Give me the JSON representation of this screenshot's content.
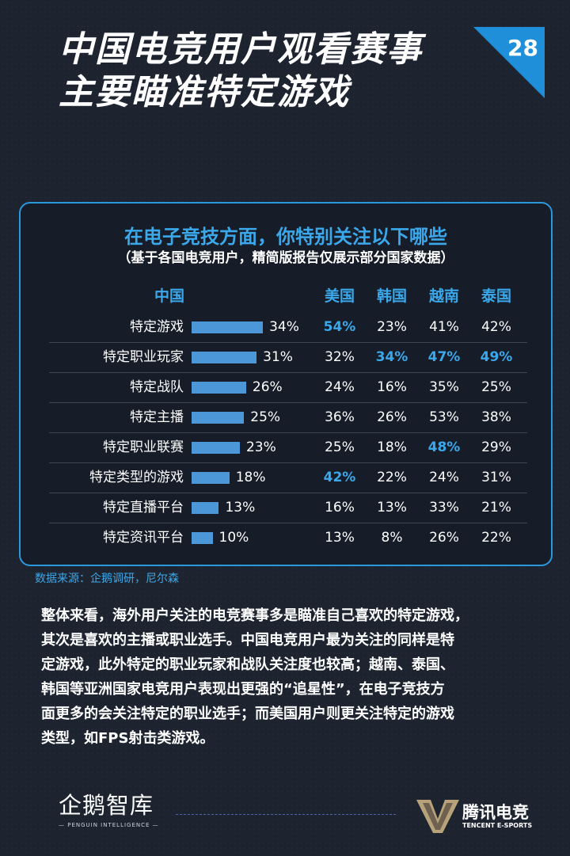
{
  "page": {
    "title_lines": [
      "中国电竞用户观看赛事",
      "主要瞄准特定游戏"
    ],
    "page_number": "28"
  },
  "chart_data": {
    "type": "bar",
    "title": "在电子竞技方面，你特别关注以下哪些",
    "subtitle": "（基于各国电竞用户，精简版报告仅展示部分国家数据）",
    "bar_column": "中国",
    "other_columns": [
      "美国",
      "韩国",
      "越南",
      "泰国"
    ],
    "categories": [
      "特定游戏",
      "特定职业玩家",
      "特定战队",
      "特定主播",
      "特定职业联赛",
      "特定类型的游戏",
      "特定直播平台",
      "特定资讯平台"
    ],
    "series": [
      {
        "name": "中国",
        "values": [
          34,
          31,
          26,
          25,
          23,
          18,
          13,
          10
        ]
      },
      {
        "name": "美国",
        "values": [
          54,
          32,
          24,
          36,
          25,
          42,
          16,
          13
        ]
      },
      {
        "name": "韩国",
        "values": [
          23,
          34,
          16,
          26,
          18,
          22,
          13,
          8
        ]
      },
      {
        "name": "越南",
        "values": [
          41,
          47,
          35,
          53,
          48,
          24,
          33,
          26
        ]
      },
      {
        "name": "泰国",
        "values": [
          42,
          49,
          25,
          38,
          29,
          31,
          21,
          22
        ]
      }
    ],
    "highlighted": [
      {
        "series": "美国",
        "category": "特定游戏"
      },
      {
        "series": "韩国",
        "category": "特定职业玩家"
      },
      {
        "series": "越南",
        "category": "特定职业玩家"
      },
      {
        "series": "泰国",
        "category": "特定职业玩家"
      },
      {
        "series": "越南",
        "category": "特定职业联赛"
      },
      {
        "series": "美国",
        "category": "特定类型的游戏"
      }
    ],
    "value_suffix": "%",
    "bar_color": "#4c97d8",
    "highlight_color": "#3aa8ea"
  },
  "source": "数据来源：企鹅调研，尼尔森",
  "body_lines": [
    "整体来看，海外用户关注的电竞赛事多是瞄准自己喜欢的特定游戏，",
    "其次是喜欢的主播或职业选手。中国电竞用户最为关注的同样是特",
    "定游戏，此外特定的职业玩家和战队关注度也较高；越南、泰国、",
    "韩国等亚洲国家电竞用户表现出更强的“追星性”，在电子竞技方",
    "面更多的会关注特定的职业选手；而美国用户则更关注特定的游戏",
    "类型，如FPS射击类游戏。"
  ],
  "footer": {
    "left_logo": "企鹅智库",
    "left_logo_sub": "— PENGUIN INTELLIGENCE —",
    "right_logo": "腾讯电竞",
    "right_logo_sub": "TENCENT E-SPORTS"
  }
}
